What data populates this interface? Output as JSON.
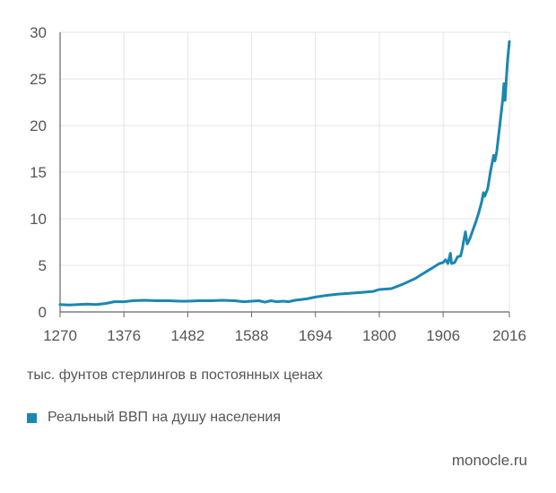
{
  "chart_data": {
    "type": "line",
    "unit_note": "тыс. фунтов стерлингов в постоянных ценах",
    "legend_position": "bottom-left",
    "grid": true,
    "xlim": [
      1270,
      2016
    ],
    "ylim": [
      0,
      30
    ],
    "x_ticks": [
      "1270",
      "1376",
      "1482",
      "1588",
      "1694",
      "1800",
      "1906",
      "2016"
    ],
    "y_ticks": [
      "0",
      "5",
      "10",
      "15",
      "20",
      "25",
      "30"
    ],
    "series": [
      {
        "name": "Реальный ВВП на душу населения",
        "color": "#1b87b0",
        "x": [
          1270,
          1285,
          1300,
          1315,
          1330,
          1345,
          1360,
          1376,
          1390,
          1410,
          1430,
          1450,
          1470,
          1482,
          1500,
          1520,
          1540,
          1560,
          1575,
          1588,
          1600,
          1610,
          1620,
          1630,
          1640,
          1650,
          1660,
          1680,
          1694,
          1710,
          1730,
          1750,
          1770,
          1790,
          1800,
          1820,
          1840,
          1860,
          1870,
          1880,
          1890,
          1900,
          1906,
          1910,
          1914,
          1918,
          1920,
          1925,
          1930,
          1935,
          1938,
          1940,
          1943,
          1946,
          1950,
          1955,
          1960,
          1965,
          1970,
          1973,
          1975,
          1980,
          1985,
          1990,
          1992,
          1995,
          2000,
          2005,
          2007,
          2009,
          2011,
          2013,
          2016
        ],
        "y": [
          0.8,
          0.75,
          0.8,
          0.85,
          0.8,
          0.9,
          1.1,
          1.1,
          1.2,
          1.25,
          1.2,
          1.2,
          1.15,
          1.15,
          1.2,
          1.2,
          1.25,
          1.2,
          1.1,
          1.15,
          1.2,
          1.05,
          1.2,
          1.1,
          1.15,
          1.1,
          1.25,
          1.4,
          1.6,
          1.75,
          1.9,
          2.0,
          2.1,
          2.2,
          2.4,
          2.5,
          3.0,
          3.6,
          4.0,
          4.4,
          4.8,
          5.2,
          5.3,
          5.6,
          5.2,
          6.3,
          5.2,
          5.3,
          5.9,
          6.0,
          6.8,
          7.6,
          8.6,
          7.3,
          7.8,
          8.7,
          9.6,
          10.6,
          11.8,
          12.8,
          12.4,
          13.2,
          15.2,
          16.8,
          16.2,
          17.2,
          20.0,
          22.8,
          24.5,
          22.7,
          25.0,
          27.0,
          29.0
        ]
      }
    ]
  },
  "source": "monocle.ru"
}
